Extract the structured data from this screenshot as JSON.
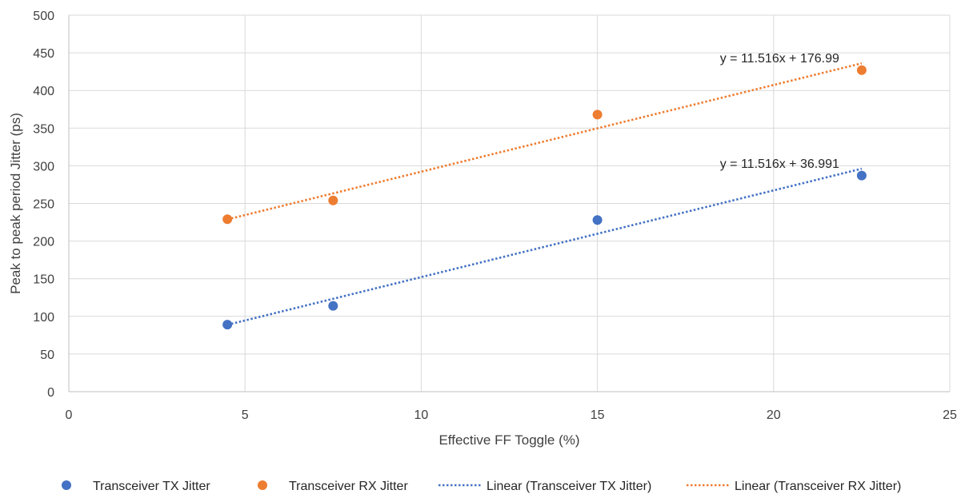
{
  "chart_data": {
    "type": "scatter",
    "title": "",
    "xlabel": "Effective FF Toggle (%)",
    "ylabel": "Peak to peak period Jitter (ps)",
    "xlim": [
      0,
      25
    ],
    "ylim": [
      0,
      500
    ],
    "x_ticks": [
      0,
      5,
      10,
      15,
      20,
      25
    ],
    "y_ticks": [
      0,
      50,
      100,
      150,
      200,
      250,
      300,
      350,
      400,
      450,
      500
    ],
    "grid": true,
    "legend_position": "bottom",
    "series": [
      {
        "name": "Transceiver TX Jitter",
        "color": "#4472C4",
        "points": [
          {
            "x": 4.5,
            "y": 89
          },
          {
            "x": 7.5,
            "y": 114
          },
          {
            "x": 15,
            "y": 228
          },
          {
            "x": 22.5,
            "y": 287
          }
        ],
        "trendline": {
          "name": "Linear (Transceiver TX Jitter)",
          "slope": 11.516,
          "intercept": 36.991,
          "equation": "y = 11.516x + 36.991"
        }
      },
      {
        "name": "Transceiver RX Jitter",
        "color": "#ED7D31",
        "points": [
          {
            "x": 4.5,
            "y": 229
          },
          {
            "x": 7.5,
            "y": 254
          },
          {
            "x": 15,
            "y": 368
          },
          {
            "x": 22.5,
            "y": 427
          }
        ],
        "trendline": {
          "name": "Linear (Transceiver RX Jitter)",
          "slope": 11.516,
          "intercept": 176.99,
          "equation": "y = 11.516x + 176.99"
        }
      }
    ]
  }
}
